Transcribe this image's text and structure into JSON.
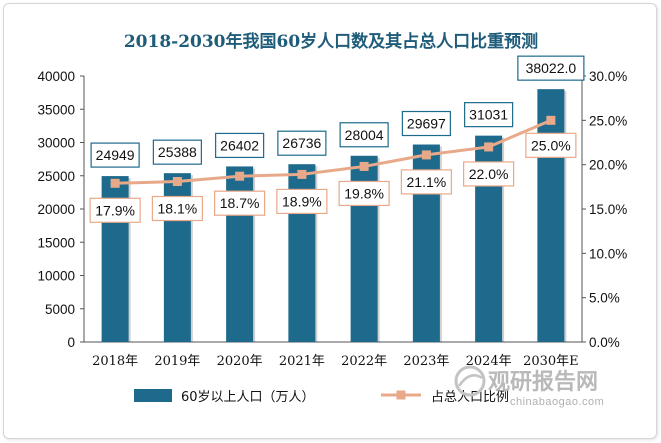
{
  "chart_data": {
    "type": "bar+line",
    "title": "2018-2030年我国60岁人口数及其占总人口比重预测",
    "categories": [
      "2018年",
      "2019年",
      "2020年",
      "2021年",
      "2022年",
      "2023年",
      "2024年",
      "2030年E"
    ],
    "series": [
      {
        "name": "60岁以上人口（万人）",
        "type": "bar",
        "axis": "left",
        "values": [
          24949,
          25388,
          26402,
          26736,
          28004,
          29697,
          31031,
          38022.0
        ],
        "labels": [
          "24949",
          "25388",
          "26402",
          "26736",
          "28004",
          "29697",
          "31031",
          "38022.0"
        ],
        "color": "#1d6a8c"
      },
      {
        "name": "占总人口比例",
        "type": "line",
        "axis": "right",
        "values": [
          17.9,
          18.1,
          18.7,
          18.9,
          19.8,
          21.1,
          22.0,
          25.0
        ],
        "labels": [
          "17.9%",
          "18.1%",
          "18.7%",
          "18.9%",
          "19.8%",
          "21.1%",
          "22.0%",
          "25.0%"
        ],
        "color": "#e8a98a"
      }
    ],
    "y_left": {
      "range": [
        0,
        40000
      ],
      "ticks": [
        "0",
        "5000",
        "10000",
        "15000",
        "20000",
        "25000",
        "30000",
        "35000",
        "40000"
      ]
    },
    "y_right": {
      "range": [
        0,
        30
      ],
      "ticks": [
        "0.0%",
        "5.0%",
        "10.0%",
        "15.0%",
        "20.0%",
        "25.0%",
        "30.0%"
      ]
    },
    "grid": false,
    "legend_position": "bottom-left"
  },
  "watermark": {
    "brand": "观研报告网",
    "url": "chinabaogao.com"
  }
}
